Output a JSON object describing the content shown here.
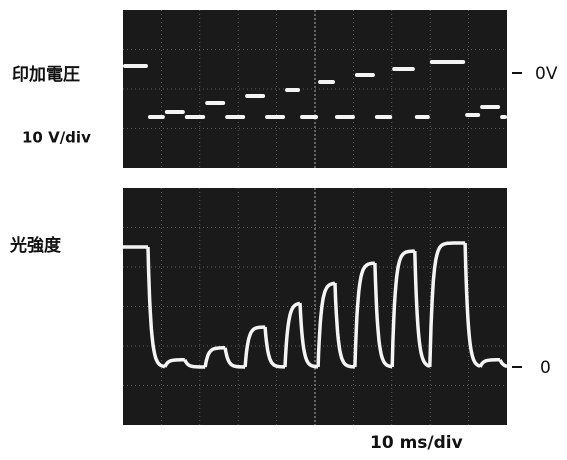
{
  "top_panel": {
    "label": "印加電圧",
    "scale": "10 V/div",
    "zero_label": "0V",
    "levels": [
      1.75,
      -11,
      -9.75,
      -11,
      -7.5,
      -11,
      -5.75,
      -11,
      -4.25,
      -11,
      -2.25,
      -11,
      -0.5,
      -11,
      1,
      -11,
      2.75,
      -10.5,
      -8.5,
      -11
    ]
  },
  "bottom_panel": {
    "label": "光強度",
    "zero_label": "0",
    "levels": [
      3.0,
      0,
      0.18,
      0,
      0.48,
      0,
      1.0,
      0,
      1.6,
      0,
      2.1,
      0,
      2.6,
      0,
      2.9,
      0,
      3.1,
      0,
      0.18,
      0
    ]
  },
  "time_scale": "10 ms/div",
  "times": [
    0,
    6.5,
    10.9,
    16.1,
    21.4,
    26.6,
    31.8,
    37,
    42.2,
    46.1,
    50.8,
    55.2,
    60.4,
    65.6,
    70.1,
    76,
    79.9,
    89.1,
    93,
    98.2
  ],
  "time_range": [
    0,
    100
  ]
}
